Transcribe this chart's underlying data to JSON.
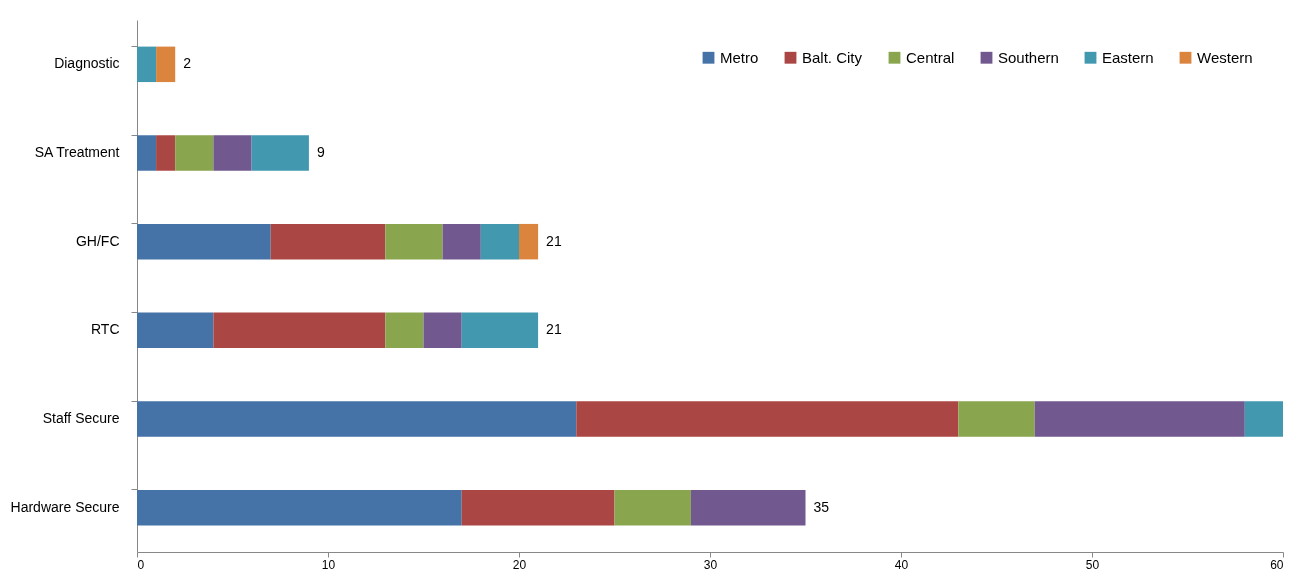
{
  "chart_data": {
    "type": "bar",
    "orientation": "horizontal",
    "stacked": true,
    "categories": [
      "Diagnostic",
      "SA Treatment",
      "GH/FC",
      "RTC",
      "Staff Secure",
      "Hardware Secure"
    ],
    "series": [
      {
        "name": "Metro",
        "color": "#4572a7",
        "values": [
          0,
          1,
          7,
          4,
          23,
          17
        ]
      },
      {
        "name": "Balt. City",
        "color": "#aa4643",
        "values": [
          0,
          1,
          6,
          9,
          20,
          8
        ]
      },
      {
        "name": "Central",
        "color": "#89a54e",
        "values": [
          0,
          2,
          3,
          2,
          4,
          4
        ]
      },
      {
        "name": "Southern",
        "color": "#71588f",
        "values": [
          0,
          2,
          2,
          2,
          11,
          6
        ]
      },
      {
        "name": "Eastern",
        "color": "#4198af",
        "values": [
          1,
          3,
          2,
          4,
          2,
          0
        ]
      },
      {
        "name": "Western",
        "color": "#db843d",
        "values": [
          1,
          0,
          1,
          0,
          0,
          0
        ]
      }
    ],
    "totals": [
      "2",
      "9",
      "21",
      "21",
      null,
      "35"
    ],
    "xlim": [
      0,
      60
    ],
    "xticks": [
      0,
      10,
      20,
      30,
      40,
      50,
      60
    ],
    "grid": false,
    "legend": "top right"
  }
}
